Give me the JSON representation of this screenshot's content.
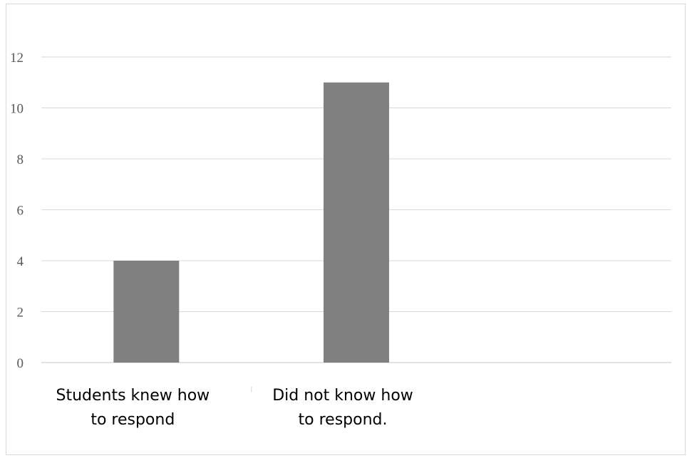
{
  "chart_data": {
    "type": "bar",
    "categories": [
      [
        "Students knew how",
        "to respond"
      ],
      [
        "Did not know how",
        "to respond."
      ],
      [
        ""
      ]
    ],
    "values": [
      4,
      11,
      null
    ],
    "title": "",
    "xlabel": "",
    "ylabel": "",
    "ylim": [
      0,
      12
    ],
    "yticks": [
      0,
      2,
      4,
      6,
      8,
      10,
      12
    ],
    "grid": true,
    "legend": "none",
    "colors": {
      "bar": "#808080",
      "grid": "#d9d9d9",
      "axis": "#d9d9d9",
      "tick_text": "#595959",
      "label_text": "#000000"
    }
  }
}
